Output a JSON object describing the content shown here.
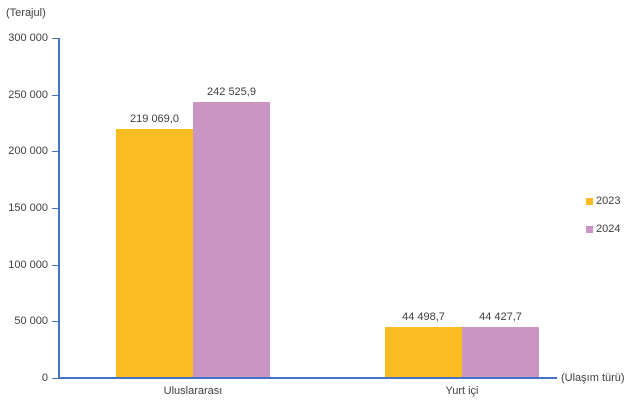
{
  "chart_data": {
    "type": "bar",
    "title": "",
    "y_axis_label": "(Terajul)",
    "x_axis_label": "(Ulaşım türü)",
    "categories": [
      "Uluslararası",
      "Yurt içi"
    ],
    "series": [
      {
        "name": "2023",
        "color": "#FBBC22",
        "values": [
          219069.0,
          44498.7
        ],
        "value_labels": [
          "219 069,0",
          "44 498,7"
        ]
      },
      {
        "name": "2024",
        "color": "#C995C2",
        "values": [
          242525.9,
          44427.7
        ],
        "value_labels": [
          "242 525,9",
          "44 427,7"
        ]
      }
    ],
    "ylim": [
      0,
      300000
    ],
    "ytick_step": 50000,
    "ytick_labels": [
      "300 000",
      "250 000",
      "200 000",
      "150 000",
      "100 000",
      "50 000",
      "0"
    ],
    "grid": false,
    "legend_position": "right",
    "axis_color": "#4472C4",
    "text_color": "#404040"
  }
}
